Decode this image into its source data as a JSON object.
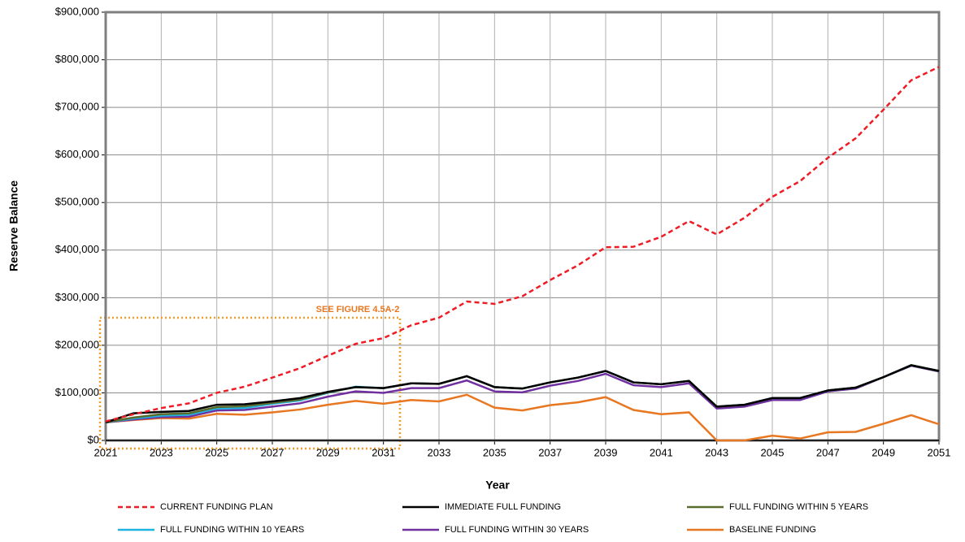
{
  "chart_data": {
    "type": "line",
    "x_label": "Year",
    "y_label": "Reserve Balance",
    "annotation": "SEE FIGURE 4.5A-2",
    "x": [
      2021,
      2022,
      2023,
      2024,
      2025,
      2026,
      2027,
      2028,
      2029,
      2030,
      2031,
      2032,
      2033,
      2034,
      2035,
      2036,
      2037,
      2038,
      2039,
      2040,
      2041,
      2042,
      2043,
      2044,
      2045,
      2046,
      2047,
      2048,
      2049,
      2050,
      2051
    ],
    "xlim": [
      2021,
      2051
    ],
    "xticks": [
      2021,
      2023,
      2025,
      2027,
      2029,
      2031,
      2033,
      2035,
      2037,
      2039,
      2041,
      2043,
      2045,
      2047,
      2049,
      2051
    ],
    "ylim": [
      0,
      900000
    ],
    "yticks": [
      {
        "value": 0,
        "label": "$0"
      },
      {
        "value": 100000,
        "label": "$100,000"
      },
      {
        "value": 200000,
        "label": "$200,000"
      },
      {
        "value": 300000,
        "label": "$300,000"
      },
      {
        "value": 400000,
        "label": "$400,000"
      },
      {
        "value": 500000,
        "label": "$500,000"
      },
      {
        "value": 600000,
        "label": "$600,000"
      },
      {
        "value": 700000,
        "label": "$700,000"
      },
      {
        "value": 800000,
        "label": "$800,000"
      },
      {
        "value": 900000,
        "label": "$900,000"
      }
    ],
    "grid": true,
    "series": [
      {
        "name": "CURRENT FUNDING PLAN",
        "color": "#ee1c25",
        "dashed": true,
        "values": [
          40000,
          55000,
          68000,
          78000,
          100000,
          113000,
          132000,
          152000,
          178000,
          203000,
          215000,
          242000,
          258000,
          292000,
          287000,
          303000,
          337000,
          368000,
          406000,
          407000,
          428000,
          461000,
          433000,
          468000,
          512000,
          545000,
          594000,
          635000,
          695000,
          757000,
          785000
        ]
      },
      {
        "name": "IMMEDIATE FULL FUNDING",
        "color": "#000000",
        "values": [
          38000,
          57000,
          60000,
          62000,
          75000,
          76000,
          82000,
          89000,
          102000,
          112000,
          110000,
          120000,
          119000,
          135000,
          112000,
          109000,
          122000,
          132000,
          146000,
          122000,
          118000,
          125000,
          71000,
          75000,
          89000,
          89000,
          105000,
          111000,
          133000,
          158000,
          146000
        ]
      },
      {
        "name": "FULL FUNDING WITHIN 5 YEARS",
        "color": "#5a6b2e",
        "values": [
          38000,
          48000,
          55000,
          57000,
          70000,
          72000,
          79000,
          86000,
          101000,
          112000,
          110000,
          120000,
          119000,
          135000,
          112000,
          109000,
          122000,
          132000,
          146000,
          122000,
          118000,
          125000,
          71000,
          75000,
          89000,
          89000,
          105000,
          111000,
          133000,
          158000,
          146000
        ]
      },
      {
        "name": "FULL FUNDING WITHIN 10 YEARS",
        "color": "#1fb4e0",
        "values": [
          38000,
          46000,
          52000,
          54000,
          67000,
          68000,
          77000,
          84000,
          100000,
          113000,
          110000,
          120000,
          119000,
          135000,
          112000,
          109000,
          122000,
          132000,
          146000,
          122000,
          118000,
          125000,
          71000,
          75000,
          89000,
          89000,
          105000,
          111000,
          133000,
          158000,
          146000
        ]
      },
      {
        "name": "FULL FUNDING WITHIN 30 YEARS",
        "color": "#7030a0",
        "values": [
          38000,
          44000,
          49000,
          50000,
          63000,
          64000,
          71000,
          78000,
          92000,
          103000,
          100000,
          110000,
          110000,
          126000,
          103000,
          101000,
          115000,
          125000,
          140000,
          116000,
          112000,
          120000,
          67000,
          71000,
          85000,
          85000,
          103000,
          109000,
          133000,
          157000,
          145000
        ]
      },
      {
        "name": "BASELINE FUNDING",
        "color": "#e87722",
        "values": [
          38000,
          43000,
          47000,
          46000,
          56000,
          54000,
          59000,
          65000,
          75000,
          83000,
          77000,
          85000,
          82000,
          96000,
          69000,
          63000,
          74000,
          80000,
          91000,
          64000,
          55000,
          59000,
          0,
          0,
          10000,
          4000,
          17000,
          18000,
          35000,
          53000,
          34000
        ]
      }
    ]
  }
}
